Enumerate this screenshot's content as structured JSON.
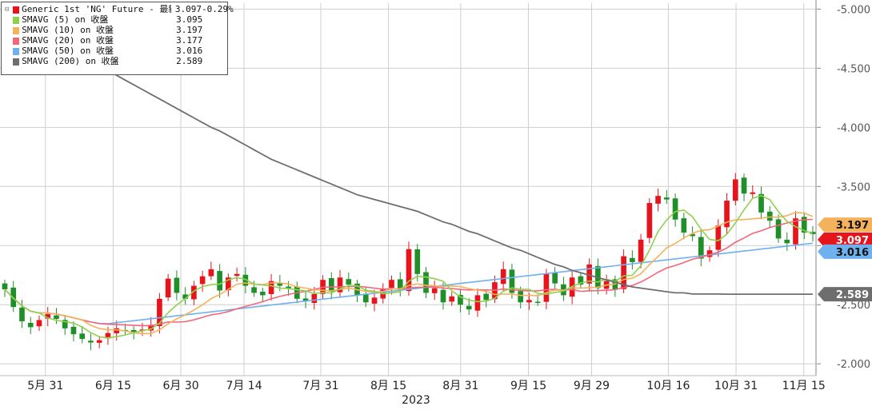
{
  "legend": {
    "items": [
      {
        "name": "Generic 1st 'NG' Future - 最新價",
        "value": "3.097",
        "change": "-0.29%",
        "color": "#e8141b"
      },
      {
        "name": "SMAVG (5)  on 收盤",
        "value": "3.095",
        "change": "",
        "color": "#8fd14f"
      },
      {
        "name": "SMAVG (10)  on 收盤",
        "value": "3.197",
        "change": "",
        "color": "#f5b25c"
      },
      {
        "name": "SMAVG (20)  on 收盤",
        "value": "3.177",
        "change": "",
        "color": "#f4667a"
      },
      {
        "name": "SMAVG (50)  on 收盤",
        "value": "3.016",
        "change": "",
        "color": "#6fb1ee"
      },
      {
        "name": "SMAVG (200)  on 收盤",
        "value": "2.589",
        "change": "",
        "color": "#6e6e6e"
      }
    ]
  },
  "chart_data": {
    "type": "candlestick",
    "title": "",
    "xlabel": "2023",
    "ylabel": "",
    "ylim": [
      1.9,
      5.05
    ],
    "yticks": [
      "5.000",
      "4.500",
      "4.000",
      "3.500",
      "3.000",
      "2.500",
      "2.000"
    ],
    "xticks": [
      {
        "label": "5月 31",
        "date": "2023-05-31"
      },
      {
        "label": "6月 15",
        "date": "2023-06-15"
      },
      {
        "label": "6月 30",
        "date": "2023-06-30"
      },
      {
        "label": "7月 14",
        "date": "2023-07-14"
      },
      {
        "label": "7月 31",
        "date": "2023-07-31"
      },
      {
        "label": "8月 15",
        "date": "2023-08-15"
      },
      {
        "label": "8月 31",
        "date": "2023-08-31"
      },
      {
        "label": "9月 15",
        "date": "2023-09-15"
      },
      {
        "label": "9月 29",
        "date": "2023-09-29"
      },
      {
        "label": "10月 16",
        "date": "2023-10-16"
      },
      {
        "label": "10月 31",
        "date": "2023-10-31"
      },
      {
        "label": "11月 15",
        "date": "2023-11-15"
      }
    ],
    "grid": true,
    "legend_position": "top-left",
    "up_color": "#e8141b",
    "down_color": "#1f8f2a",
    "x_start": "2023-05-22",
    "close": [
      2.63,
      2.48,
      2.36,
      2.31,
      2.37,
      2.42,
      2.38,
      2.3,
      2.25,
      2.21,
      2.18,
      2.2,
      2.26,
      2.3,
      2.28,
      2.27,
      2.29,
      2.33,
      2.55,
      2.72,
      2.6,
      2.55,
      2.66,
      2.74,
      2.8,
      2.62,
      2.73,
      2.76,
      2.66,
      2.6,
      2.58,
      2.7,
      2.66,
      2.64,
      2.55,
      2.53,
      2.59,
      2.71,
      2.61,
      2.73,
      2.67,
      2.58,
      2.52,
      2.56,
      2.63,
      2.71,
      2.63,
      2.97,
      2.76,
      2.6,
      2.64,
      2.52,
      2.57,
      2.5,
      2.46,
      2.58,
      2.54,
      2.69,
      2.8,
      2.6,
      2.52,
      2.54,
      2.52,
      2.76,
      2.68,
      2.58,
      2.73,
      2.67,
      2.84,
      2.64,
      2.7,
      2.63,
      2.91,
      2.86,
      3.05,
      3.36,
      3.42,
      3.39,
      3.22,
      3.11,
      3.08,
      2.89,
      2.96,
      3.17,
      3.38,
      3.56,
      3.44,
      3.45,
      3.28,
      3.21,
      3.06,
      3.02,
      3.23,
      3.11,
      3.097
    ],
    "sma5_last": 3.095,
    "sma10_last": 3.197,
    "sma20_last": 3.177,
    "sma50_last": 3.016,
    "sma200": [
      4.85,
      4.8,
      4.77,
      4.74,
      4.72,
      4.69,
      4.66,
      4.64,
      4.61,
      4.58,
      4.56,
      4.52,
      4.48,
      4.44,
      4.4,
      4.36,
      4.32,
      4.28,
      4.24,
      4.2,
      4.16,
      4.12,
      4.08,
      4.04,
      4.0,
      3.97,
      3.93,
      3.89,
      3.85,
      3.81,
      3.77,
      3.73,
      3.7,
      3.67,
      3.64,
      3.61,
      3.58,
      3.55,
      3.52,
      3.49,
      3.46,
      3.43,
      3.41,
      3.39,
      3.37,
      3.35,
      3.33,
      3.31,
      3.29,
      3.26,
      3.23,
      3.2,
      3.18,
      3.15,
      3.12,
      3.1,
      3.07,
      3.04,
      3.01,
      2.98,
      2.96,
      2.93,
      2.9,
      2.87,
      2.84,
      2.82,
      2.79,
      2.77,
      2.75,
      2.73,
      2.71,
      2.69,
      2.67,
      2.65,
      2.64,
      2.63,
      2.62,
      2.61,
      2.6,
      2.6,
      2.59,
      2.59,
      2.59,
      2.59,
      2.589,
      2.589,
      2.589,
      2.589,
      2.589,
      2.589,
      2.589,
      2.589,
      2.589,
      2.589,
      2.589
    ],
    "last_value_tags": [
      {
        "series": "SMAVG (10)",
        "text": "3.197",
        "color": "#f5b25c"
      },
      {
        "series": "Generic 1st 'NG' Future",
        "text": "3.097",
        "color": "#e8141b"
      },
      {
        "series": "SMAVG (50)",
        "text": "3.016",
        "color": "#6fb1ee"
      },
      {
        "series": "SMAVG (200)",
        "text": "2.589",
        "color": "#6e6e6e"
      }
    ]
  }
}
